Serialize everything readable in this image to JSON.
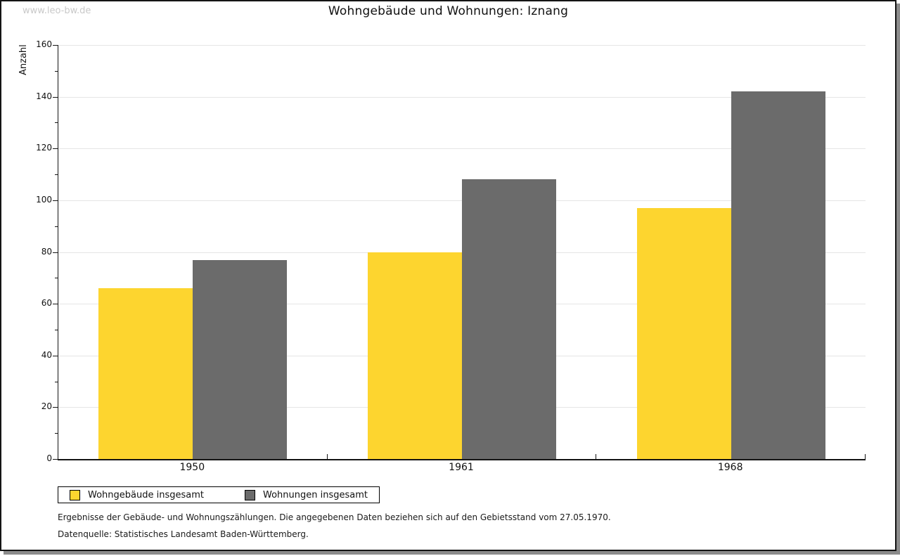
{
  "watermark": "www.leo-bw.de",
  "header": {
    "title": "Wohngebäude und Wohnungen: Iznang"
  },
  "colors": {
    "series1": "#fdd52f",
    "series2": "#6b6b6b",
    "grid": "#e5e5e5",
    "axis": "#141414",
    "watermark": "#c9c9c9",
    "frame_shadow": "#8c8c8c"
  },
  "chart_data": {
    "type": "bar",
    "title": "Wohngebäude und Wohnungen: Iznang",
    "xlabel": "",
    "ylabel": "Anzahl",
    "categories": [
      "1950",
      "1961",
      "1968"
    ],
    "series": [
      {
        "name": "Wohngebäude insgesamt",
        "color": "#fdd52f",
        "values": [
          66,
          80,
          97
        ]
      },
      {
        "name": "Wohnungen insgesamt",
        "color": "#6b6b6b",
        "values": [
          77,
          108,
          142
        ]
      }
    ],
    "ylim": [
      0,
      160
    ],
    "ytick_step": 20,
    "yminor_step": 10,
    "grid": true,
    "legend_position": "bottom-left"
  },
  "footnotes": [
    "Ergebnisse der Gebäude- und Wohnungszählungen. Die angegebenen Daten beziehen sich auf den Gebietsstand vom 27.05.1970.",
    "Datenquelle: Statistisches Landesamt Baden-Württemberg."
  ]
}
